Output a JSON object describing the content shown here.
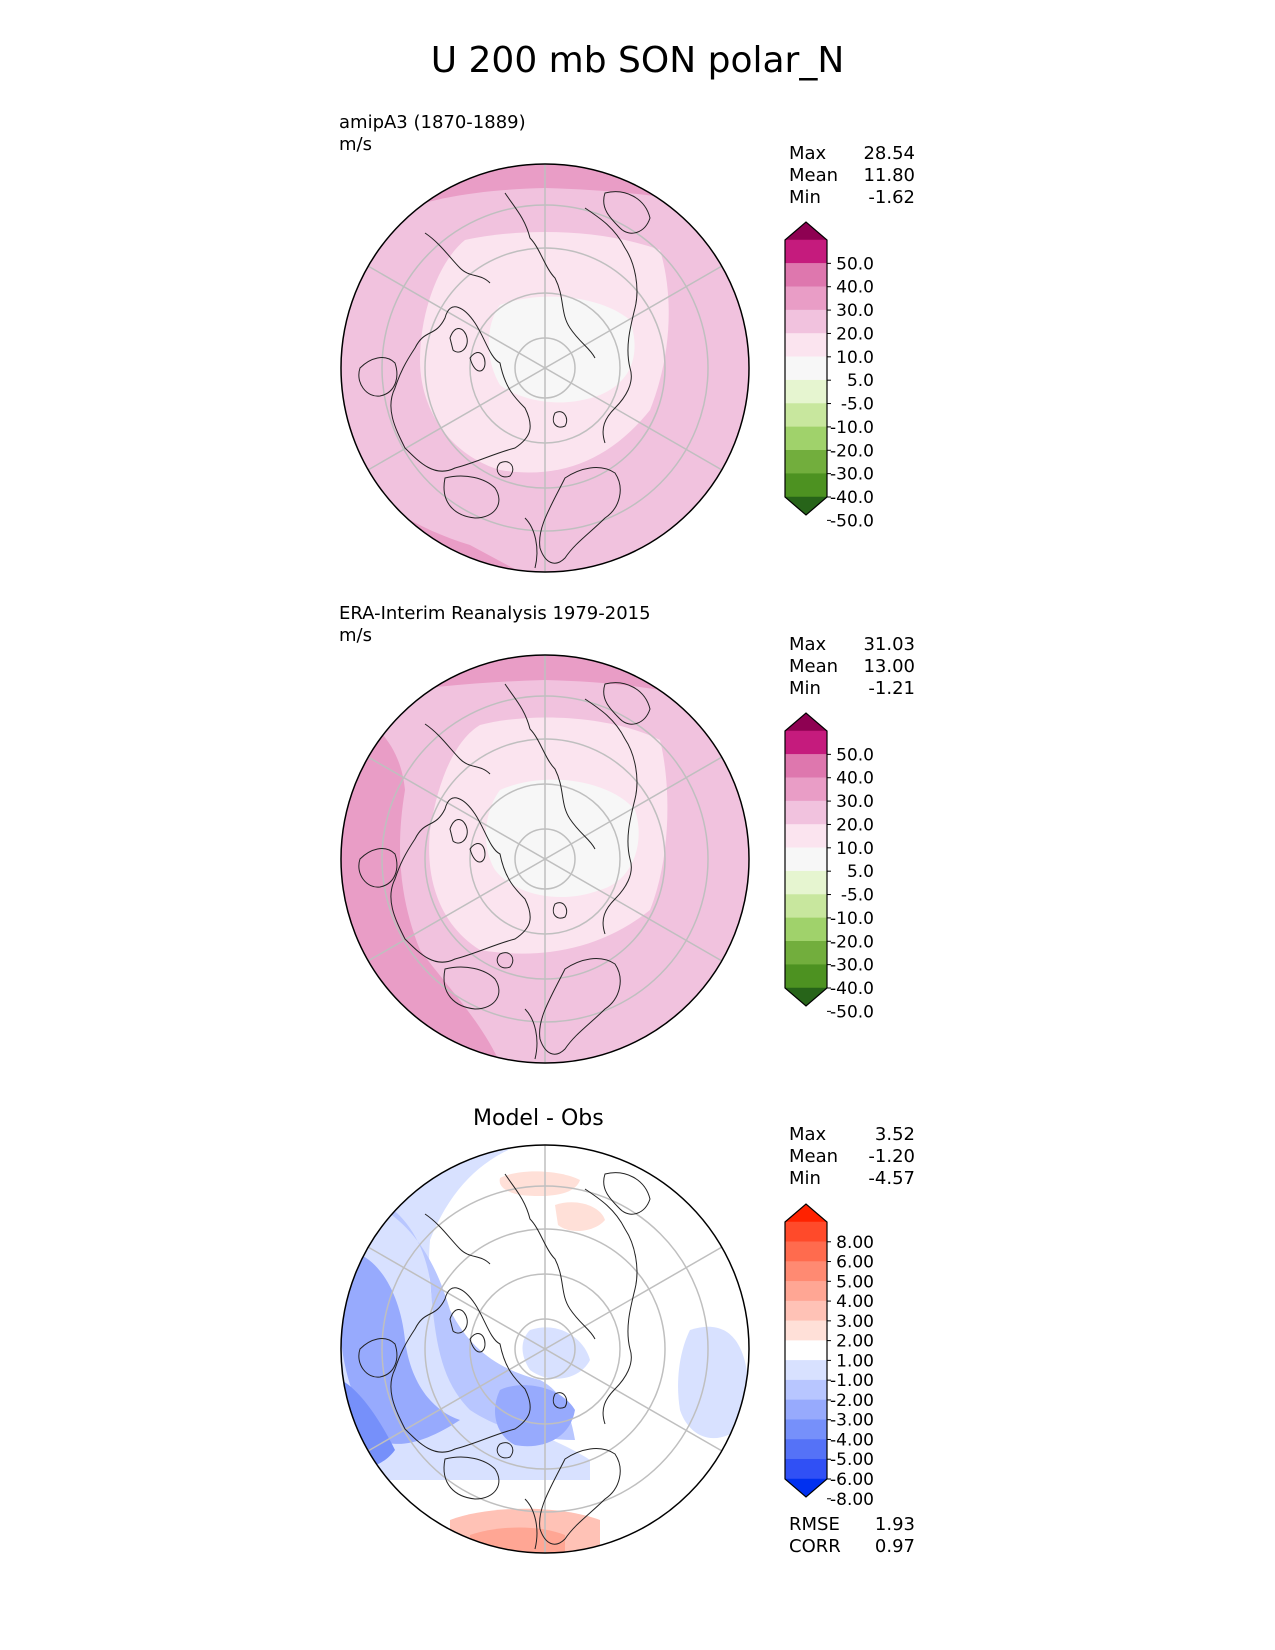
{
  "figure": {
    "title": "U 200 mb SON polar_N"
  },
  "panels": [
    {
      "id": "model",
      "label": "amipA3 (1870-1889)",
      "units": "m/s",
      "stats": [
        {
          "name": "Max",
          "value": "28.54"
        },
        {
          "name": "Mean",
          "value": "11.80"
        },
        {
          "name": "Min",
          "value": "-1.62"
        }
      ],
      "colorbar": {
        "levels": [
          "50.0",
          "40.0",
          "30.0",
          "20.0",
          "10.0",
          "5.0",
          "-5.0",
          "-10.0",
          "-20.0",
          "-30.0",
          "-40.0",
          "-50.0"
        ],
        "colors": [
          "#8e0152",
          "#c51b7d",
          "#de77ae",
          "#e99dc6",
          "#f1c2de",
          "#fbe4ef",
          "#f7f7f7",
          "#e6f5d0",
          "#c8e79e",
          "#a0d26b",
          "#72ae3d",
          "#4d9221",
          "#276419"
        ]
      }
    },
    {
      "id": "obs",
      "label": "ERA-Interim Reanalysis 1979-2015",
      "units": "m/s",
      "stats": [
        {
          "name": "Max",
          "value": "31.03"
        },
        {
          "name": "Mean",
          "value": "13.00"
        },
        {
          "name": "Min",
          "value": "-1.21"
        }
      ],
      "colorbar": {
        "levels": [
          "50.0",
          "40.0",
          "30.0",
          "20.0",
          "10.0",
          "5.0",
          "-5.0",
          "-10.0",
          "-20.0",
          "-30.0",
          "-40.0",
          "-50.0"
        ],
        "colors": [
          "#8e0152",
          "#c51b7d",
          "#de77ae",
          "#e99dc6",
          "#f1c2de",
          "#fbe4ef",
          "#f7f7f7",
          "#e6f5d0",
          "#c8e79e",
          "#a0d26b",
          "#72ae3d",
          "#4d9221",
          "#276419"
        ]
      }
    },
    {
      "id": "diff",
      "title": "Model - Obs",
      "stats": [
        {
          "name": "Max",
          "value": "3.52"
        },
        {
          "name": "Mean",
          "value": "-1.20"
        },
        {
          "name": "Min",
          "value": "-4.57"
        }
      ],
      "metrics": [
        {
          "name": "RMSE",
          "value": "1.93"
        },
        {
          "name": "CORR",
          "value": "0.97"
        }
      ],
      "colorbar": {
        "levels": [
          "8.00",
          "6.00",
          "5.00",
          "4.00",
          "3.00",
          "2.00",
          "1.00",
          "-1.00",
          "-2.00",
          "-3.00",
          "-4.00",
          "-5.00",
          "-6.00",
          "-8.00"
        ],
        "colors": [
          "#ff2200",
          "#ff4a2a",
          "#ff6b4e",
          "#ff8a72",
          "#ffa694",
          "#ffc2b6",
          "#ffe0d8",
          "#ffffff",
          "#d8e1ff",
          "#b8c6ff",
          "#97aafd",
          "#7690fa",
          "#5572f7",
          "#3050f5",
          "#0030f0"
        ]
      }
    }
  ],
  "chart_data": {
    "type": "heatmap",
    "title": "U 200 mb SON polar_N",
    "projection": "north polar stereographic",
    "variable": "U",
    "level": "200 mb",
    "season": "SON",
    "fields": [
      {
        "name": "amipA3 (1870-1889)",
        "units": "m/s",
        "max": 28.54,
        "mean": 11.8,
        "min": -1.62
      },
      {
        "name": "ERA-Interim Reanalysis 1979-2015",
        "units": "m/s",
        "max": 31.03,
        "mean": 13.0,
        "min": -1.21
      },
      {
        "name": "Model - Obs",
        "max": 3.52,
        "mean": -1.2,
        "min": -4.57,
        "rmse": 1.93,
        "corr": 0.97
      }
    ]
  }
}
